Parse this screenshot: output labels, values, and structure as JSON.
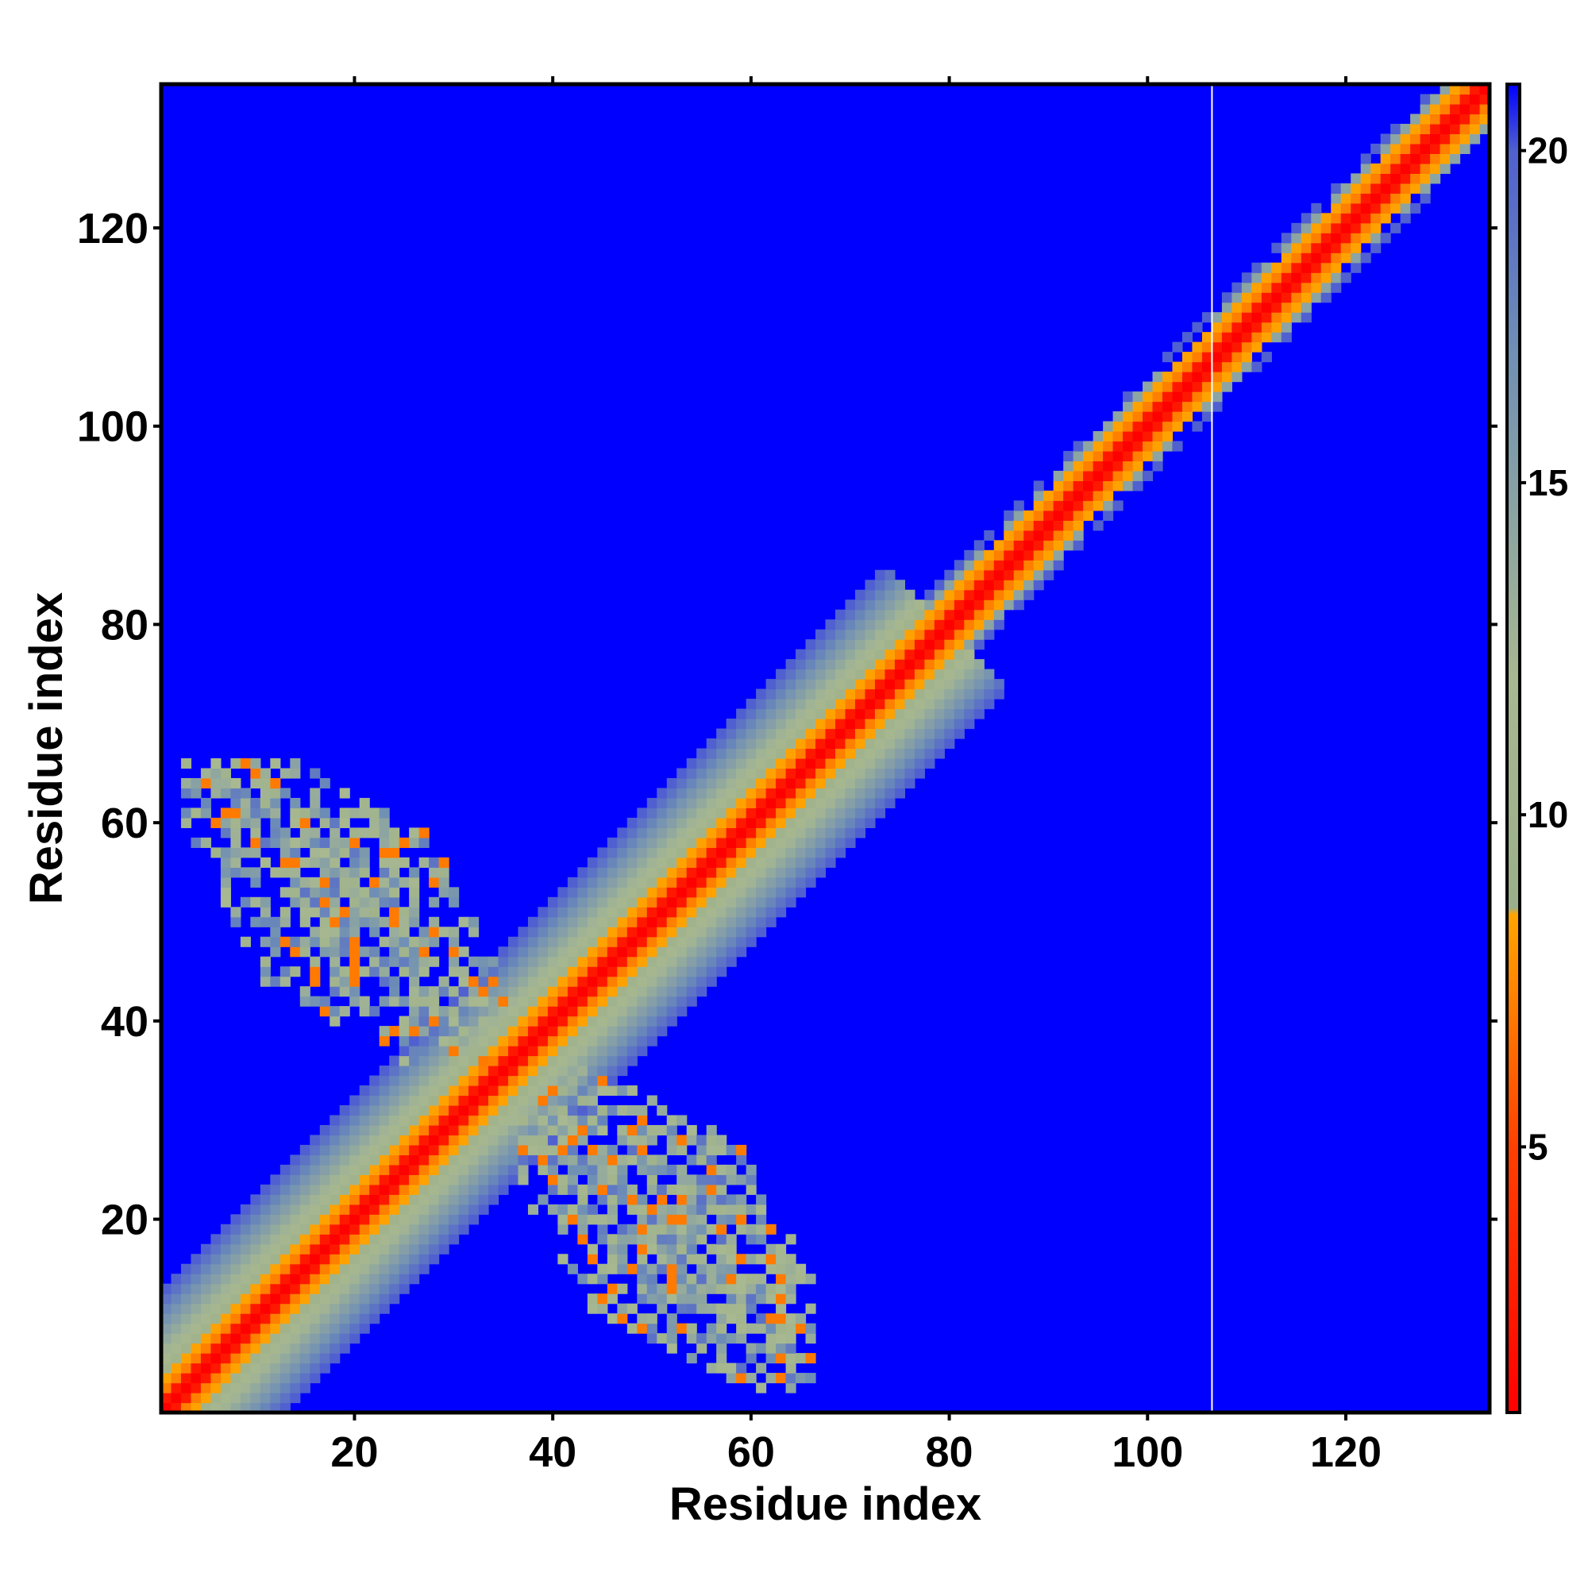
{
  "chart_data": {
    "type": "heatmap",
    "title": "",
    "xlabel": "Residue index",
    "ylabel": "Residue index",
    "n_residues": 134,
    "xlim": [
      0.5,
      134.5
    ],
    "ylim": [
      0.5,
      134.5
    ],
    "x_ticks": [
      20,
      40,
      60,
      80,
      100,
      120
    ],
    "y_ticks": [
      20,
      40,
      60,
      80,
      100,
      120
    ],
    "colorbar": {
      "ticks": [
        5,
        10,
        15,
        20
      ],
      "range": [
        1,
        21
      ],
      "stops": [
        {
          "value": 1,
          "color": "#ff0000"
        },
        {
          "value": 5,
          "color": "#ff4000"
        },
        {
          "value": 8.5,
          "color": "#ffa500"
        },
        {
          "value": 8.6,
          "color": "#9aaf8a"
        },
        {
          "value": 12,
          "color": "#a8b890"
        },
        {
          "value": 17,
          "color": "#6f8fb5"
        },
        {
          "value": 20,
          "color": "#5060d0"
        },
        {
          "value": 21,
          "color": "#0000ff"
        }
      ]
    },
    "background_color": "#0000ff",
    "description_of_values": "Residue-residue distance map; diagonal band has minimal values (red), increasing outward through orange and grey-green to blue.",
    "features": {
      "diagonal": {
        "start": 1,
        "end": 134,
        "red_halfwidth": 1,
        "orange_halfwidth": 3,
        "band_halfwidth_wide": 12,
        "wide_from": 1,
        "wide_to": 80,
        "band_halfwidth_narrow": 5,
        "narrow_from": 80,
        "narrow_to": 134
      },
      "off_diagonal_blocks": [
        {
          "residues_i": [
            3,
            36
          ],
          "residues_j": [
            36,
            66
          ]
        },
        {
          "residues_i": [
            36,
            66
          ],
          "residues_j": [
            3,
            36
          ]
        }
      ],
      "white_line_x": 106.5
    }
  }
}
